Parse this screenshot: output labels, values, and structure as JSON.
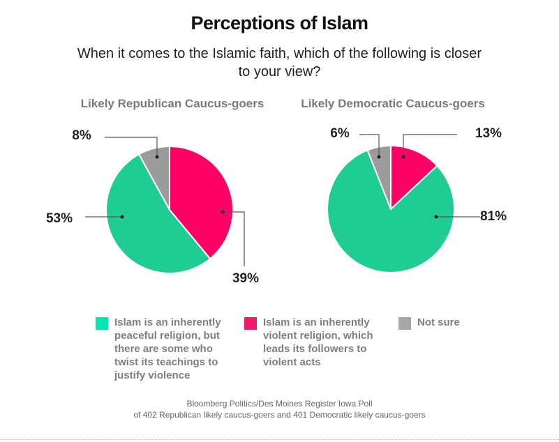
{
  "chart_data": {
    "type": "pie",
    "title": "Perceptions of Islam",
    "subtitle": "When it comes to the Islamic faith, which of the following is closer to your view?",
    "legend": [
      {
        "label": "Islam is an inherently peaceful religion, but there are some who twist its teachings to justify violence",
        "color": "#1ecc94"
      },
      {
        "label": "Islam is an inherently violent religion, which leads its followers to violent acts",
        "color": "#ff0066"
      },
      {
        "label": "Not sure",
        "color": "#9b9b9b"
      }
    ],
    "pies": [
      {
        "title": "Likely Republican Caucus-goers",
        "slices": [
          {
            "name": "violent",
            "value": 39,
            "label": "39%",
            "color": "#ff0066"
          },
          {
            "name": "peaceful",
            "value": 53,
            "label": "53%",
            "color": "#1ecc94"
          },
          {
            "name": "not-sure",
            "value": 8,
            "label": "8%",
            "color": "#9b9b9b"
          }
        ]
      },
      {
        "title": "Likely Democratic Caucus-goers",
        "slices": [
          {
            "name": "violent",
            "value": 13,
            "label": "13%",
            "color": "#ff0066"
          },
          {
            "name": "peaceful",
            "value": 81,
            "label": "81%",
            "color": "#1ecc94"
          },
          {
            "name": "not-sure",
            "value": 6,
            "label": "6%",
            "color": "#9b9b9b"
          }
        ]
      }
    ],
    "source_line1": "Bloomberg Politics/Des Moines Register Iowa Poll",
    "source_line2": "of 402 Republican likely caucus-goers and 401 Democratic likely caucus-goers"
  }
}
